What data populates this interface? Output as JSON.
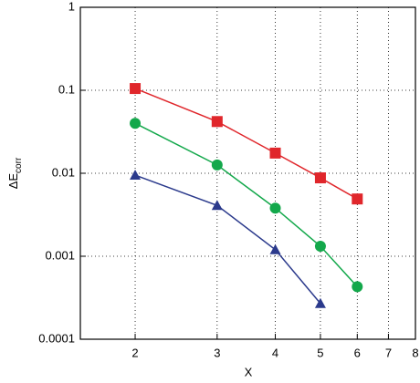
{
  "chart_data": {
    "type": "line",
    "x_label": "X",
    "y_label": {
      "main": "ΔE",
      "sub": "corr"
    },
    "x": [
      2,
      3,
      4,
      5,
      6
    ],
    "series": [
      {
        "color": "#e0262b",
        "marker": "square",
        "values": [
          0.105,
          0.042,
          0.0175,
          0.0088,
          0.0049
        ]
      },
      {
        "color": "#13a84b",
        "marker": "circle",
        "values": [
          0.04,
          0.0126,
          0.0038,
          0.00132,
          0.00043
        ]
      },
      {
        "color": "#2b3a8c",
        "marker": "triangle",
        "values": [
          0.0095,
          0.0041,
          0.0012,
          0.00027,
          null
        ]
      }
    ],
    "xlim": [
      1.525,
      8
    ],
    "xticks": [
      2,
      3,
      4,
      5,
      6,
      7,
      8
    ],
    "ylim": [
      0.0001,
      1
    ],
    "yticks": [
      1,
      0.1,
      0.01,
      0.001,
      0.0001
    ],
    "xscale": "log",
    "yscale": "log",
    "grid": true
  }
}
